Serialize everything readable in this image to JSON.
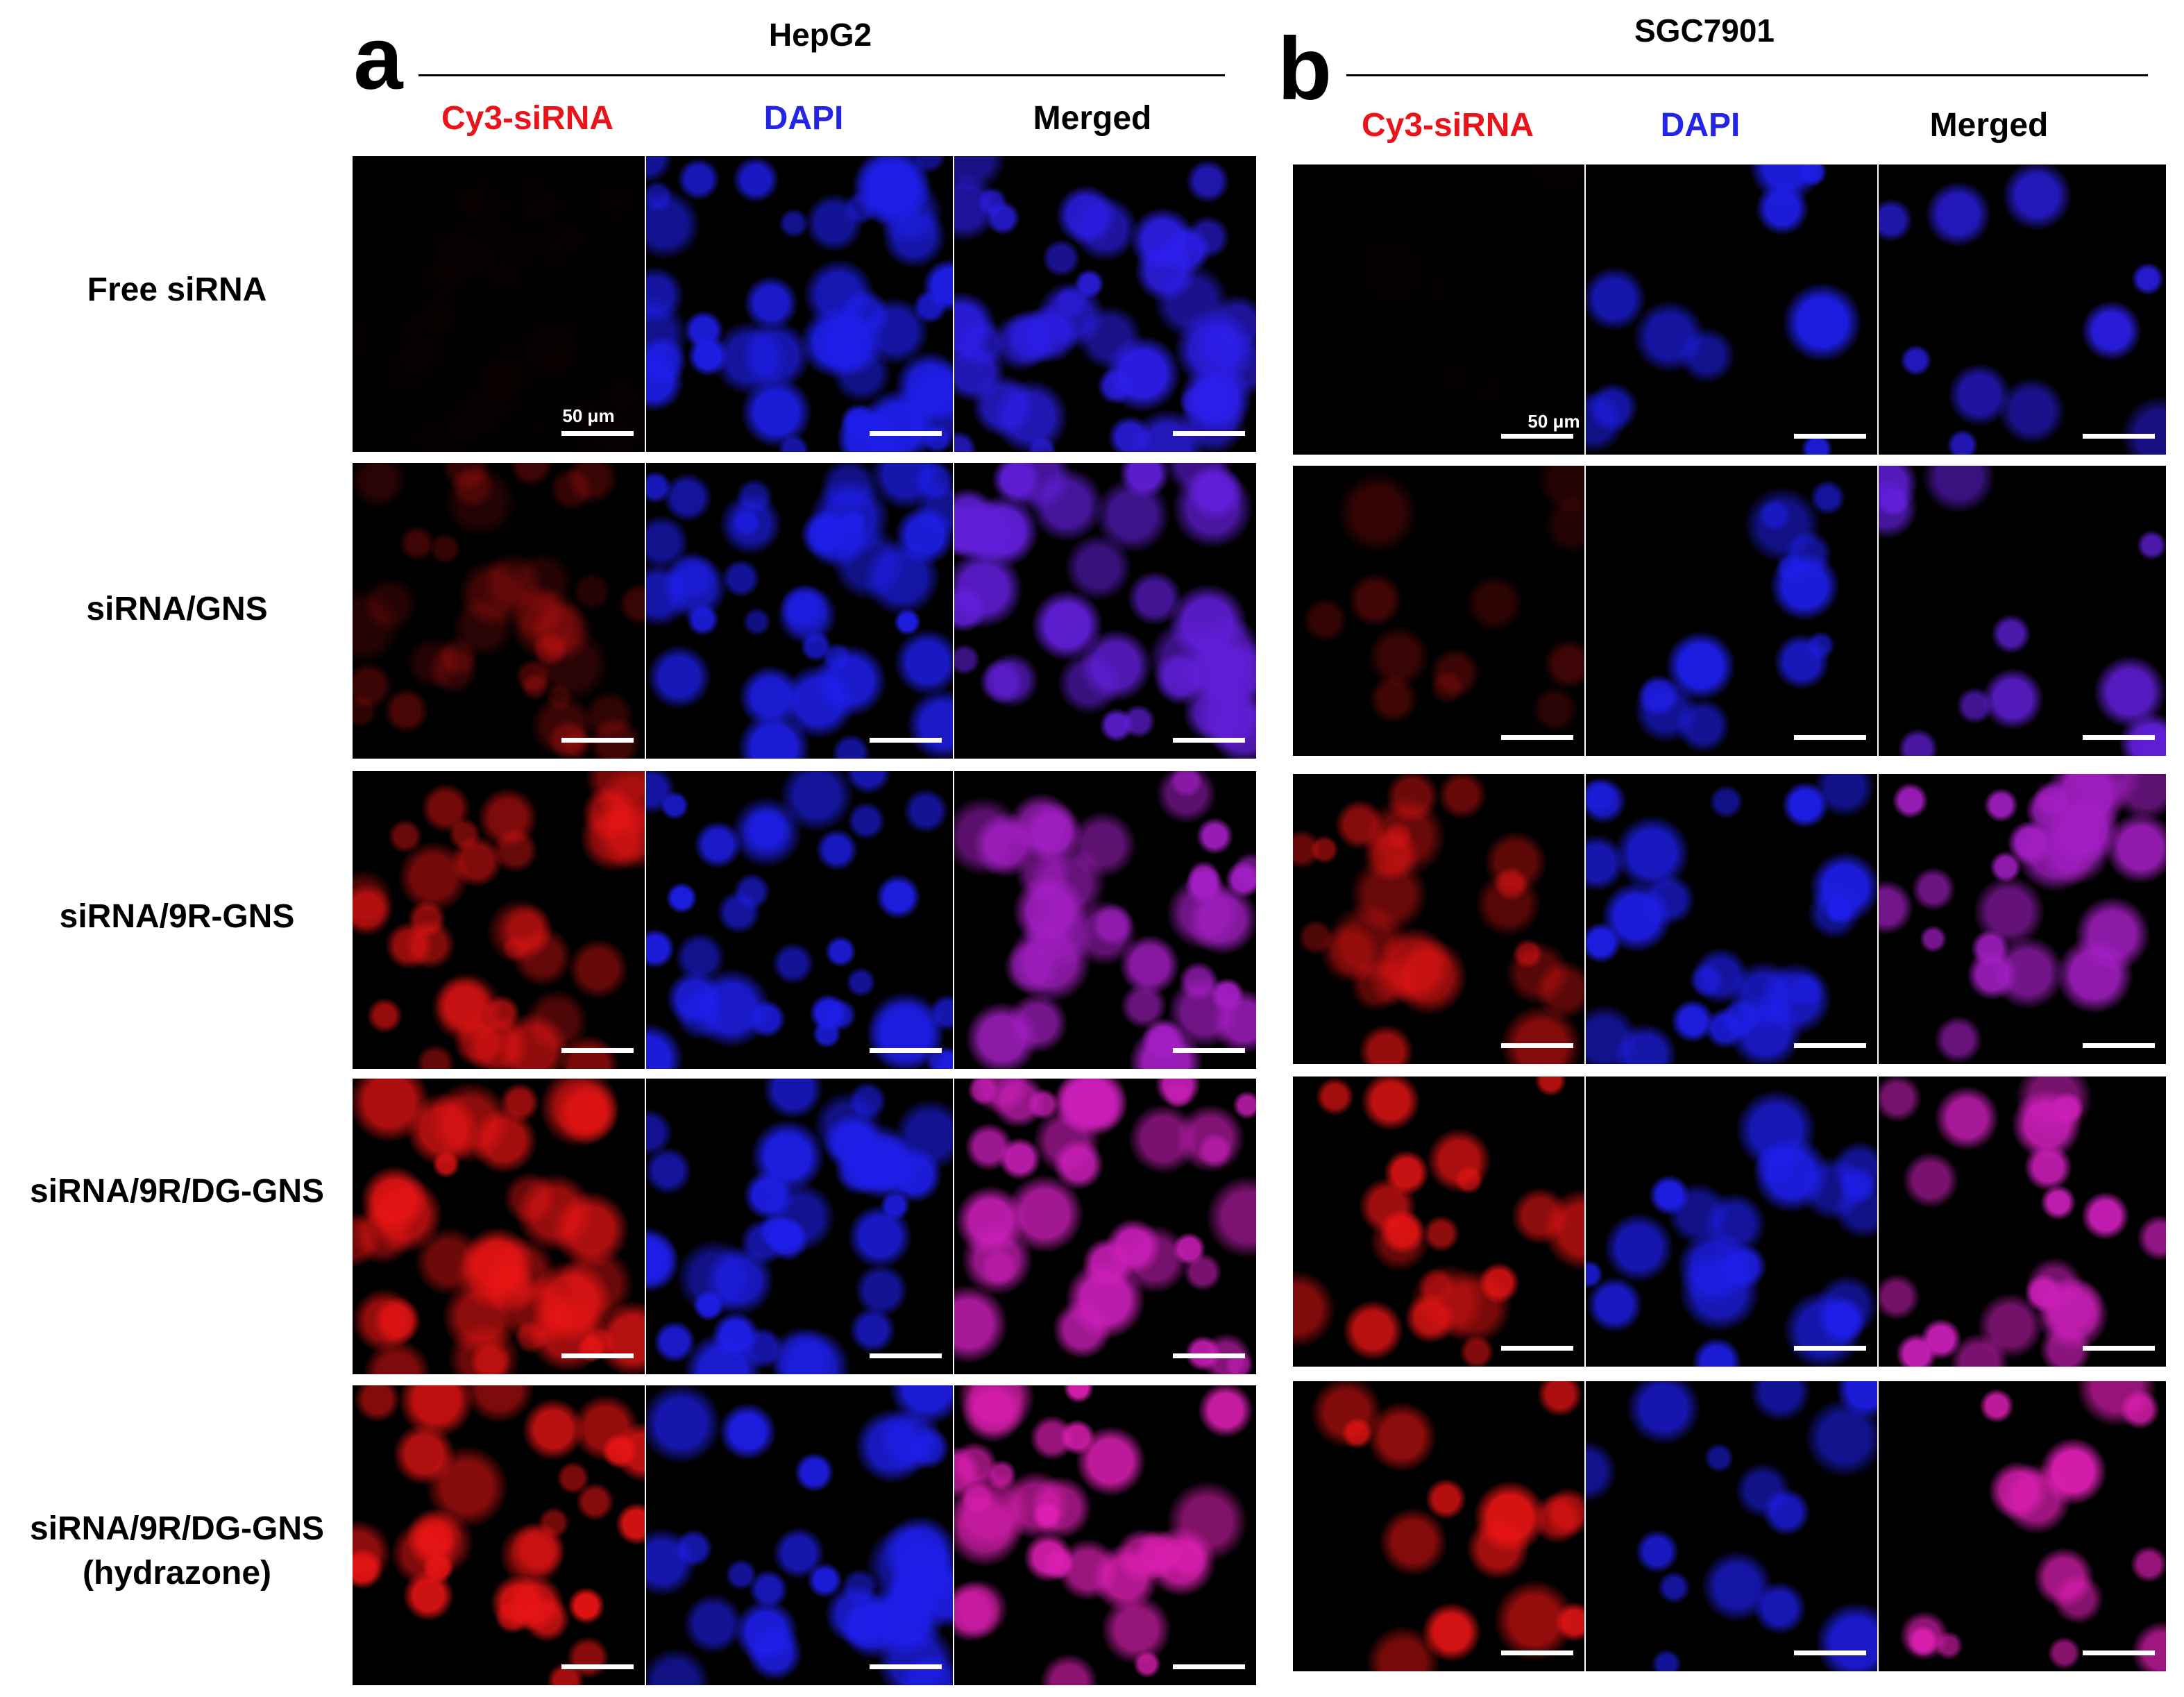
{
  "panels": [
    {
      "letter": "a",
      "title": "HepG2",
      "columns": [
        "Cy3-siRNA",
        "DAPI",
        "Merged"
      ],
      "scale_label": "50 μm"
    },
    {
      "letter": "b",
      "title": "SGC7901",
      "columns": [
        "Cy3-siRNA",
        "DAPI",
        "Merged"
      ],
      "scale_label": "50 μm"
    }
  ],
  "rows": [
    [
      "Free siRNA"
    ],
    [
      "siRNA/GNS"
    ],
    [
      "siRNA/9R-GNS"
    ],
    [
      "siRNA/9R/DG-GNS"
    ],
    [
      "siRNA/9R/DG-GNS",
      "(hydrazone)"
    ]
  ]
}
